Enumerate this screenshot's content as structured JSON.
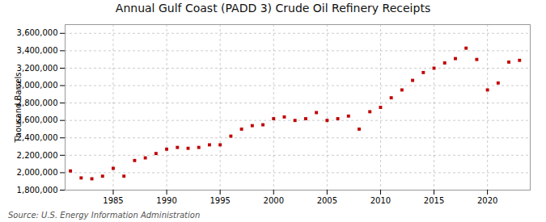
{
  "chart_data": {
    "type": "scatter",
    "title": "Annual Gulf Coast (PADD 3) Crude Oil Refinery Receipts",
    "ylabel": "Thousand Barrels",
    "source": "Source: U.S. Energy Information Administration",
    "x": [
      1981,
      1982,
      1983,
      1984,
      1985,
      1986,
      1987,
      1988,
      1989,
      1990,
      1991,
      1992,
      1993,
      1994,
      1995,
      1996,
      1997,
      1998,
      1999,
      2000,
      2001,
      2002,
      2003,
      2004,
      2005,
      2006,
      2007,
      2008,
      2009,
      2010,
      2011,
      2012,
      2013,
      2014,
      2015,
      2016,
      2017,
      2018,
      2019,
      2020,
      2021,
      2022,
      2023
    ],
    "values": [
      2020000,
      1940000,
      1930000,
      1960000,
      2050000,
      1960000,
      2140000,
      2170000,
      2220000,
      2270000,
      2290000,
      2280000,
      2290000,
      2320000,
      2320000,
      2420000,
      2500000,
      2540000,
      2550000,
      2620000,
      2640000,
      2600000,
      2620000,
      2690000,
      2600000,
      2620000,
      2650000,
      2500000,
      2700000,
      2750000,
      2860000,
      2950000,
      3060000,
      3150000,
      3200000,
      3260000,
      3310000,
      3430000,
      3300000,
      2950000,
      3030000,
      3270000,
      3290000
    ],
    "color": "#c00000",
    "marker": "square",
    "xlim": [
      1980.5,
      2024
    ],
    "xticks": [
      1985,
      1990,
      1995,
      2000,
      2005,
      2010,
      2015,
      2020
    ],
    "ylim": [
      1800000,
      3700000
    ],
    "yticks": [
      {
        "value": 1800000,
        "label": "1,800,000"
      },
      {
        "value": 2000000,
        "label": "2,000,000"
      },
      {
        "value": 2200000,
        "label": "2,200,000"
      },
      {
        "value": 2400000,
        "label": "2,400,000"
      },
      {
        "value": 2600000,
        "label": "2,600,000"
      },
      {
        "value": 2800000,
        "label": "2,800,000"
      },
      {
        "value": 3000000,
        "label": "3,000,000"
      },
      {
        "value": 3200000,
        "label": "3,200,000"
      },
      {
        "value": 3400000,
        "label": "3,400,000"
      },
      {
        "value": 3600000,
        "label": "3,600,000"
      }
    ],
    "grid": true
  }
}
